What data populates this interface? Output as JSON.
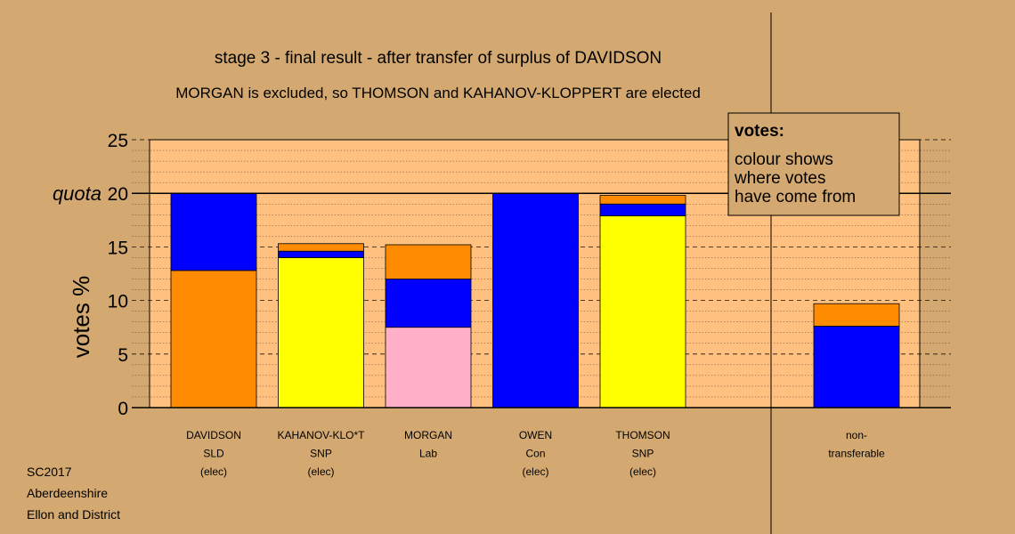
{
  "chart_data": {
    "type": "bar",
    "stacked": true,
    "title": "stage 3 - final result - after transfer of surplus of DAVIDSON",
    "subtitle": "MORGAN is excluded, so THOMSON and KAHANOV-KLOPPERT are elected",
    "ylabel": "votes %",
    "ylim": [
      0,
      25
    ],
    "yticks": [
      "0",
      "5",
      "10",
      "15",
      "20",
      "25"
    ],
    "quota": {
      "value": 20,
      "label": "quota"
    },
    "grid": true,
    "legend": {
      "position": "top-right",
      "title": "votes:",
      "lines": [
        "colour shows",
        "where votes",
        "have come from"
      ]
    },
    "colors": {
      "orange": "#ff8c00",
      "blue": "#0000ff",
      "yellow": "#ffff00",
      "pink": "#ffb0c8",
      "plot_bg": "#ffc080",
      "page_bg": "#d4a971"
    },
    "categories": [
      {
        "lines": [
          "DAVIDSON",
          "SLD",
          "(elec)"
        ],
        "segments": [
          {
            "color": "orange",
            "value": 12.8
          },
          {
            "color": "blue",
            "value": 7.2
          }
        ]
      },
      {
        "lines": [
          "KAHANOV-KLO*T",
          "SNP",
          "(elec)"
        ],
        "segments": [
          {
            "color": "yellow",
            "value": 14.0
          },
          {
            "color": "blue",
            "value": 0.6
          },
          {
            "color": "orange",
            "value": 0.7
          }
        ]
      },
      {
        "lines": [
          "MORGAN",
          "Lab",
          ""
        ],
        "segments": [
          {
            "color": "pink",
            "value": 7.5
          },
          {
            "color": "blue",
            "value": 4.5
          },
          {
            "color": "orange",
            "value": 3.2
          }
        ]
      },
      {
        "lines": [
          "OWEN",
          "Con",
          "(elec)"
        ],
        "segments": [
          {
            "color": "blue",
            "value": 20.0
          }
        ]
      },
      {
        "lines": [
          "THOMSON",
          "SNP",
          "(elec)"
        ],
        "segments": [
          {
            "color": "yellow",
            "value": 17.9
          },
          {
            "color": "blue",
            "value": 1.1
          },
          {
            "color": "orange",
            "value": 0.8
          }
        ]
      }
    ],
    "non_transferable": {
      "lines": [
        "non-",
        "transferable"
      ],
      "segments": [
        {
          "color": "blue",
          "value": 7.6
        },
        {
          "color": "orange",
          "value": 2.1
        }
      ]
    }
  },
  "footer": {
    "lines": [
      "SC2017",
      "Aberdeenshire",
      "Ellon and District"
    ]
  }
}
